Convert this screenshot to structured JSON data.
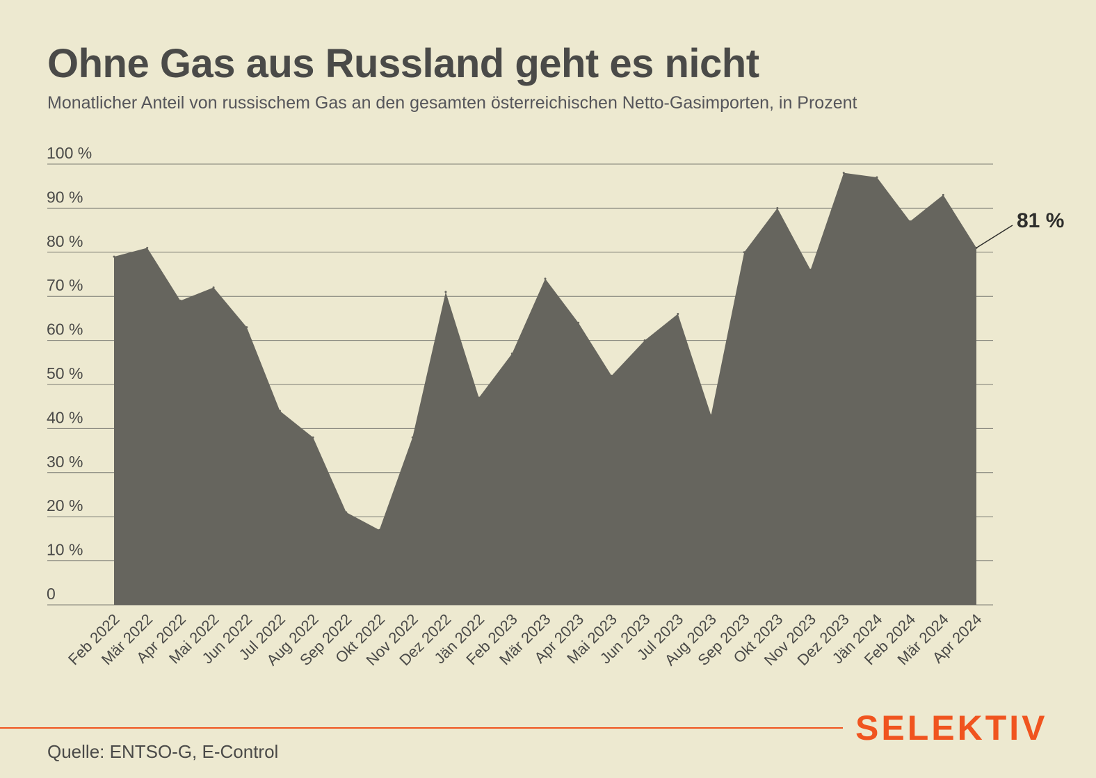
{
  "header": {
    "title": "Ohne Gas aus Russland geht es nicht",
    "subtitle": "Monatlicher Anteil von russischem Gas an den gesamten österreichischen Netto-Gasimporten, in Prozent"
  },
  "footer": {
    "source": "Quelle: ENTSO-G, E-Control",
    "logo": "SELEKTIV"
  },
  "colors": {
    "background": "#ede9d0",
    "area": "#66655e",
    "grid": "#7a7a72",
    "text": "#4a4a48",
    "accent": "#f0541f"
  },
  "chart_data": {
    "type": "area",
    "title": "Ohne Gas aus Russland geht es nicht",
    "subtitle": "Monatlicher Anteil von russischem Gas an den gesamten österreichischen Netto-Gasimporten, in Prozent",
    "xlabel": "",
    "ylabel": "",
    "ylim": [
      0,
      100
    ],
    "yticks": [
      0,
      10,
      20,
      30,
      40,
      50,
      60,
      70,
      80,
      90,
      100
    ],
    "ytick_labels": [
      "0",
      "10 %",
      "20 %",
      "30 %",
      "40 %",
      "50 %",
      "60 %",
      "70 %",
      "80 %",
      "90 %",
      "100 %"
    ],
    "grid": true,
    "legend": "none",
    "categories": [
      "Feb 2022",
      "Mär 2022",
      "Apr 2022",
      "Mai 2022",
      "Jun 2022",
      "Jul 2022",
      "Aug 2022",
      "Sep 2022",
      "Okt 2022",
      "Nov 2022",
      "Dez 2022",
      "Jän 2022",
      "Feb 2023",
      "Mär 2023",
      "Apr 2023",
      "Mai 2023",
      "Jun 2023",
      "Jul 2023",
      "Aug 2023",
      "Sep 2023",
      "Okt 2023",
      "Nov 2023",
      "Dez 2023",
      "Jän 2024",
      "Feb 2024",
      "Mär 2024",
      "Apr 2024"
    ],
    "values": [
      79,
      81,
      69,
      72,
      63,
      44,
      38,
      21,
      17,
      38,
      71,
      47,
      57,
      74,
      64,
      52,
      60,
      66,
      43,
      80,
      90,
      76,
      98,
      97,
      87,
      93,
      81
    ],
    "annotations": [
      {
        "label": "81 %",
        "category": "Apr 2024",
        "value": 81
      }
    ]
  }
}
